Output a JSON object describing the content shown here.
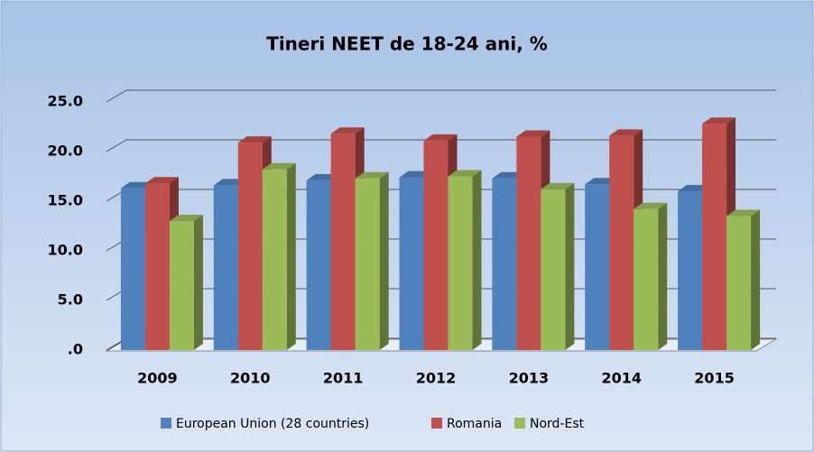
{
  "chart_data": {
    "type": "bar3d",
    "title": "Tineri NEET de 18-24 ani, %",
    "categories": [
      "2009",
      "2010",
      "2011",
      "2012",
      "2013",
      "2014",
      "2015"
    ],
    "series": [
      {
        "name": "European Union (28 countries)",
        "color": "#4f81bd",
        "values": [
          16.3,
          16.6,
          17.1,
          17.4,
          17.3,
          16.7,
          16.0
        ]
      },
      {
        "name": "Romania",
        "color": "#c0504d",
        "values": [
          16.8,
          20.9,
          21.8,
          21.1,
          21.5,
          21.6,
          22.8
        ]
      },
      {
        "name": "Nord-Est",
        "color": "#9bbb59",
        "values": [
          13.0,
          18.2,
          17.3,
          17.5,
          16.2,
          14.2,
          13.5
        ]
      }
    ],
    "ylim": [
      0,
      25
    ],
    "yticks": [
      {
        "value": 0,
        "label": ".0"
      },
      {
        "value": 5,
        "label": "5.0"
      },
      {
        "value": 10,
        "label": "10.0"
      },
      {
        "value": 15,
        "label": "15.0"
      },
      {
        "value": 20,
        "label": "20.0"
      },
      {
        "value": 25,
        "label": "25.0"
      }
    ],
    "grid": true,
    "legend": "bottom"
  }
}
